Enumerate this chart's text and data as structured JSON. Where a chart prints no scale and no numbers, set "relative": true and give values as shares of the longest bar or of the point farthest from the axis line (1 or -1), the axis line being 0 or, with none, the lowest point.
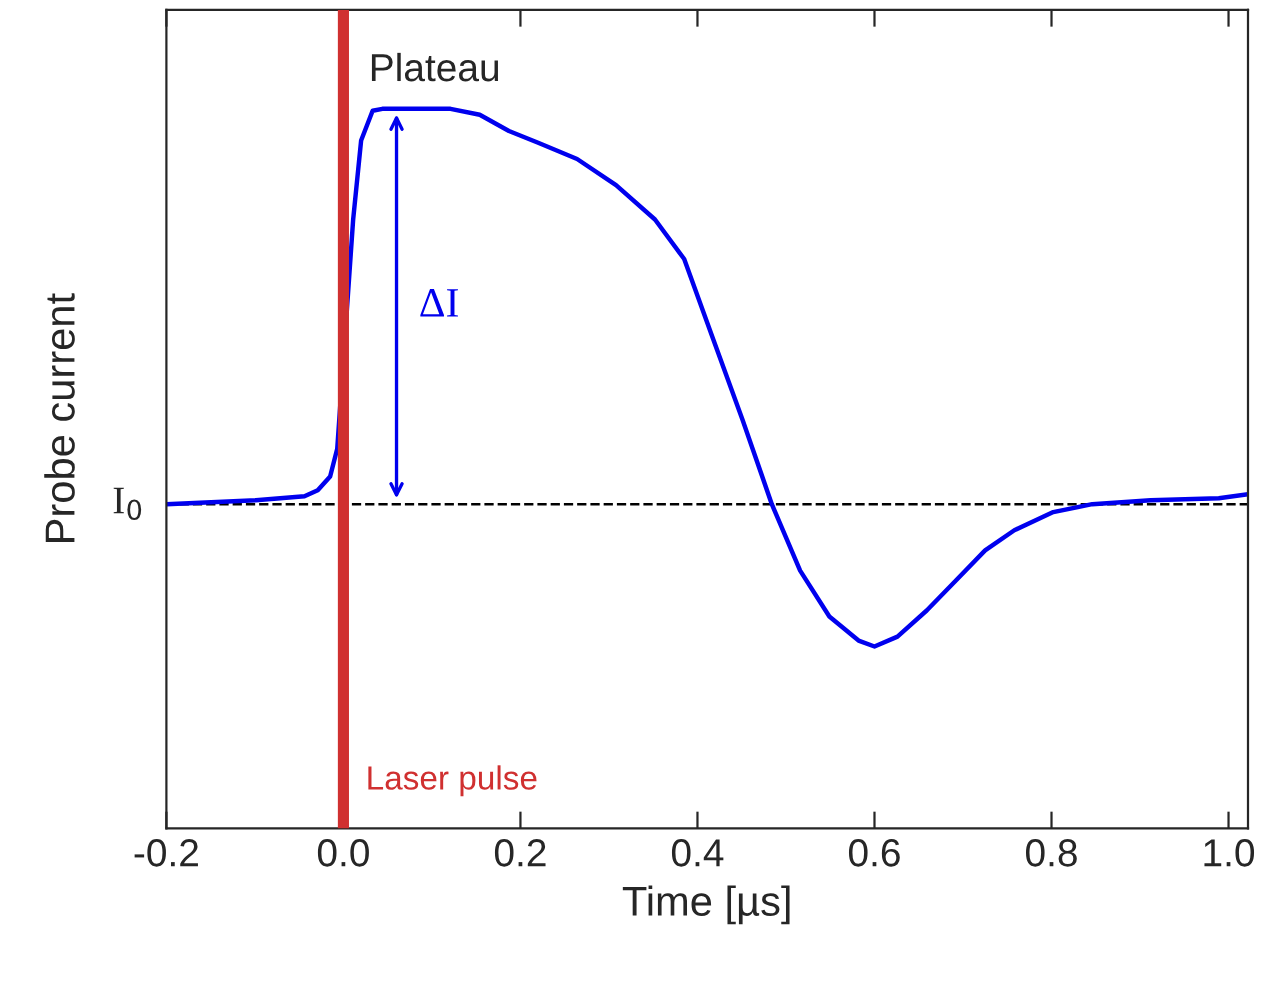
{
  "chart_data": {
    "type": "line",
    "relative": true,
    "xlabel": "Time [µs]",
    "ylabel": "Probe current",
    "x": [
      -0.2,
      -0.099,
      -0.044,
      -0.029,
      -0.015,
      -0.007,
      0.002,
      0.011,
      0.02,
      0.033,
      0.044,
      0.121,
      0.154,
      0.187,
      0.22,
      0.264,
      0.308,
      0.352,
      0.385,
      0.418,
      0.451,
      0.484,
      0.516,
      0.549,
      0.582,
      0.6,
      0.626,
      0.659,
      0.692,
      0.725,
      0.758,
      0.802,
      0.846,
      0.912,
      0.989,
      1.022
    ],
    "series": [
      {
        "color": "#0000ee",
        "values": [
          0,
          0.01,
          0.02,
          0.035,
          0.07,
          0.14,
          null,
          0.72,
          0.92,
          0.995,
          1.0,
          1.0,
          0.985,
          0.944,
          0.914,
          0.873,
          0.807,
          0.72,
          0.62,
          0.416,
          0.213,
          0,
          -0.168,
          -0.284,
          -0.345,
          -0.36,
          -0.335,
          -0.269,
          -0.193,
          -0.117,
          -0.066,
          -0.02,
          0,
          0.01,
          0.015,
          0.025
        ]
      }
    ],
    "xlim": [
      -0.2,
      1.022
    ],
    "xticks": [
      -0.2,
      {
        "value": 0,
        "label": "0.0"
      },
      0.2,
      0.4,
      0.6,
      0.8,
      {
        "value": 1,
        "label": "1.0"
      }
    ],
    "ref_lines": [
      {
        "axis": "x",
        "value": 0,
        "label": "Laser pulse",
        "color": "#d03030",
        "line_style": "solid"
      },
      {
        "axis": "y",
        "value": 0,
        "label": "I$_{0}$",
        "color": "#000000",
        "line_style": "dashed"
      }
    ],
    "annotations": [
      {
        "text": "Plateau",
        "x": 0.06,
        "y": 1.0
      },
      "ΔI"
    ],
    "grid": false,
    "legend": false,
    "line_style": "solid",
    "marker": "none"
  }
}
